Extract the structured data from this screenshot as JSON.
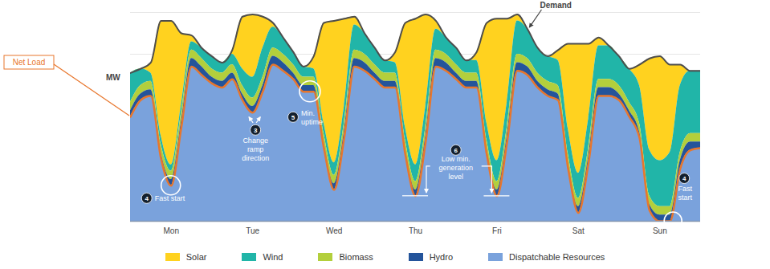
{
  "chart_data": {
    "type": "area",
    "stacked": true,
    "x": [
      0,
      3,
      6,
      9,
      12,
      15,
      18,
      21,
      24,
      27,
      30,
      33,
      36,
      39,
      42,
      45,
      48,
      51,
      54,
      57,
      60,
      63,
      66,
      69,
      72,
      75,
      78,
      81,
      84,
      87,
      90,
      93,
      96,
      99,
      102,
      105,
      108,
      111,
      114,
      117,
      120,
      123,
      126,
      129,
      132,
      135,
      138,
      141,
      144,
      147,
      150,
      153,
      156,
      159,
      162,
      165,
      168
    ],
    "xlim": [
      0,
      168
    ],
    "xticks": [
      {
        "value": 12,
        "label": "Mon"
      },
      {
        "value": 36,
        "label": "Tue"
      },
      {
        "value": 60,
        "label": "Wed"
      },
      {
        "value": 84,
        "label": "Thu"
      },
      {
        "value": 108,
        "label": "Fri"
      },
      {
        "value": 132,
        "label": "Sat"
      },
      {
        "value": 156,
        "label": "Sun"
      }
    ],
    "ylim": [
      0,
      100
    ],
    "yticks": [
      0,
      20,
      40,
      60,
      80,
      100
    ],
    "grid": true,
    "tick_labels": "x",
    "y_label": "MW",
    "series": [
      {
        "name": "Solar",
        "color": "#ffd21f",
        "values": [
          0,
          0,
          5,
          55,
          69,
          34,
          3,
          0,
          0,
          0,
          2,
          25,
          30,
          15,
          2,
          0,
          0,
          0,
          6,
          48,
          68,
          42,
          4,
          0,
          0,
          0,
          5,
          50,
          70,
          44,
          4,
          0,
          0,
          0,
          4,
          48,
          68,
          40,
          3,
          0,
          0,
          0,
          5,
          41,
          62,
          36,
          4,
          0,
          0,
          0,
          10,
          44,
          50,
          42,
          10,
          0,
          0
        ]
      },
      {
        "name": "Wind",
        "color": "#21b5a8",
        "values": [
          14,
          8,
          4,
          4,
          3,
          4,
          4,
          5,
          6,
          5,
          5,
          8,
          10,
          14,
          10,
          8,
          6,
          5,
          4,
          5,
          6,
          8,
          12,
          10,
          8,
          6,
          5,
          6,
          8,
          10,
          10,
          8,
          8,
          6,
          6,
          8,
          10,
          12,
          16,
          14,
          12,
          12,
          12,
          12,
          12,
          14,
          16,
          16,
          14,
          16,
          18,
          22,
          22,
          26,
          32,
          30,
          30
        ]
      },
      {
        "name": "Biomass",
        "color": "#b3cf3c",
        "values": [
          4,
          4,
          4,
          4,
          4,
          4,
          4,
          4,
          4,
          4,
          4,
          4,
          4,
          4,
          4,
          4,
          4,
          4,
          4,
          4,
          4,
          4,
          4,
          4,
          4,
          4,
          4,
          4,
          4,
          4,
          4,
          4,
          4,
          4,
          4,
          4,
          4,
          4,
          4,
          4,
          4,
          4,
          4,
          4,
          4,
          4,
          4,
          4,
          4,
          4,
          4,
          4,
          4,
          4,
          4,
          4,
          4
        ]
      },
      {
        "name": "Hydro",
        "color": "#24549b",
        "values": [
          3,
          3,
          3,
          3,
          3,
          3,
          4,
          4,
          3,
          3,
          3,
          3,
          3,
          3,
          4,
          4,
          3,
          3,
          3,
          3,
          3,
          3,
          4,
          4,
          3,
          3,
          3,
          3,
          3,
          3,
          4,
          4,
          3,
          3,
          3,
          3,
          3,
          3,
          4,
          4,
          3,
          3,
          3,
          3,
          3,
          3,
          4,
          4,
          3,
          3,
          3,
          3,
          3,
          3,
          4,
          4,
          3
        ]
      },
      {
        "name": "Dispatchable Resources",
        "color": "#7aa2dc",
        "values": [
          50,
          58,
          60,
          30,
          17,
          45,
          74,
          70,
          66,
          64,
          68,
          58,
          52,
          62,
          75,
          72,
          68,
          62,
          62,
          35,
          15,
          40,
          74,
          72,
          68,
          64,
          64,
          32,
          12,
          38,
          74,
          72,
          68,
          64,
          64,
          32,
          12,
          38,
          72,
          70,
          64,
          60,
          58,
          25,
          4,
          28,
          60,
          60,
          58,
          50,
          40,
          5,
          0,
          0,
          25,
          34,
          35
        ]
      }
    ],
    "lines": [
      {
        "name": "Demand",
        "color": "#4d4d4d"
      },
      {
        "name": "Net Load",
        "color": "#e8762c",
        "of": "Dispatchable Resources"
      }
    ],
    "annotations": [
      {
        "number": 4,
        "text": [
          "Fast start"
        ],
        "x": 12,
        "y": 17
      },
      {
        "number": 3,
        "text": [
          "Change",
          "ramp",
          "direction"
        ],
        "x": 36,
        "y": 52
      },
      {
        "number": 5,
        "text": [
          "Min.",
          "uptime"
        ],
        "x": 53,
        "y": 62
      },
      {
        "number": 6,
        "text": [
          "Low min.",
          "generation",
          "level"
        ],
        "x": [
          84,
          108
        ],
        "y": 12
      },
      {
        "number": 4,
        "text": [
          "Fast",
          "start"
        ],
        "x": 160,
        "y": 0
      }
    ]
  }
}
